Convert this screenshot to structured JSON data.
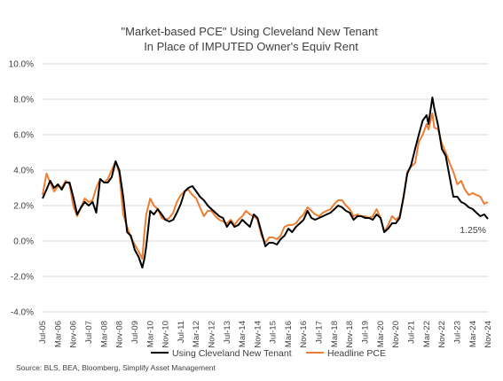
{
  "chart_data": {
    "type": "line",
    "title": "\"Market-based PCE\" Using Cleveland New Tenant\nIn Place of IMPUTED Owner's Equiv Rent",
    "source": "Source: BLS, BEA, Bloomberg, Simplify Asset Management",
    "ylim": [
      -4.0,
      10.0
    ],
    "y_ticks": [
      "10.0%",
      "8.0%",
      "6.0%",
      "4.0%",
      "2.0%",
      "0.0%",
      "-2.0%",
      "-4.0%"
    ],
    "y_tick_values": [
      10,
      8,
      6,
      4,
      2,
      0,
      -2,
      -4
    ],
    "x_tick_labels": [
      "Jul-05",
      "Mar-06",
      "Nov-06",
      "Jul-07",
      "Mar-08",
      "Nov-08",
      "Jul-09",
      "Mar-10",
      "Nov-10",
      "Jul-11",
      "Mar-12",
      "Nov-12",
      "Jul-13",
      "Mar-14",
      "Nov-14",
      "Jul-15",
      "Mar-16",
      "Nov-16",
      "Jul-17",
      "Mar-18",
      "Nov-18",
      "Jul-19",
      "Mar-20",
      "Nov-20",
      "Jul-21",
      "Mar-22",
      "Nov-22",
      "Jul-23",
      "Mar-24",
      "Nov-24"
    ],
    "x_tick_decimal_years": [
      2005.5,
      2006.17,
      2006.83,
      2007.5,
      2008.17,
      2008.83,
      2009.5,
      2010.17,
      2010.83,
      2011.5,
      2012.17,
      2012.83,
      2013.5,
      2014.17,
      2014.83,
      2015.5,
      2016.17,
      2016.83,
      2017.5,
      2018.17,
      2018.83,
      2019.5,
      2020.17,
      2020.83,
      2021.5,
      2022.17,
      2022.83,
      2023.5,
      2024.17,
      2024.83
    ],
    "x_range": [
      2005.5,
      2024.83
    ],
    "grid": "horizontal",
    "legend_position": "bottom",
    "annotation": "1.25%",
    "series": [
      {
        "name": "Using Cleveland New Tenant",
        "color": "#000000",
        "points": [
          [
            2005.5,
            2.4
          ],
          [
            2005.67,
            2.9
          ],
          [
            2005.83,
            3.4
          ],
          [
            2006.0,
            3.0
          ],
          [
            2006.17,
            3.2
          ],
          [
            2006.33,
            2.9
          ],
          [
            2006.5,
            3.3
          ],
          [
            2006.67,
            3.3
          ],
          [
            2006.83,
            2.5
          ],
          [
            2007.0,
            1.5
          ],
          [
            2007.17,
            1.9
          ],
          [
            2007.33,
            2.2
          ],
          [
            2007.5,
            2.0
          ],
          [
            2007.67,
            2.2
          ],
          [
            2007.83,
            1.6
          ],
          [
            2008.0,
            3.5
          ],
          [
            2008.17,
            3.3
          ],
          [
            2008.33,
            3.3
          ],
          [
            2008.5,
            3.6
          ],
          [
            2008.67,
            4.5
          ],
          [
            2008.83,
            4.0
          ],
          [
            2009.0,
            2.5
          ],
          [
            2009.17,
            0.5
          ],
          [
            2009.33,
            0.3
          ],
          [
            2009.5,
            -0.5
          ],
          [
            2009.67,
            -0.9
          ],
          [
            2009.83,
            -1.5
          ],
          [
            2009.92,
            -1.0
          ],
          [
            2010.0,
            -0.3
          ],
          [
            2010.17,
            1.7
          ],
          [
            2010.33,
            1.5
          ],
          [
            2010.5,
            1.8
          ],
          [
            2010.67,
            1.5
          ],
          [
            2010.83,
            1.2
          ],
          [
            2011.0,
            1.1
          ],
          [
            2011.17,
            1.2
          ],
          [
            2011.33,
            1.6
          ],
          [
            2011.5,
            2.1
          ],
          [
            2011.67,
            2.8
          ],
          [
            2011.83,
            3.0
          ],
          [
            2012.0,
            3.1
          ],
          [
            2012.17,
            2.8
          ],
          [
            2012.33,
            2.5
          ],
          [
            2012.5,
            2.3
          ],
          [
            2012.67,
            2.0
          ],
          [
            2012.83,
            1.8
          ],
          [
            2013.0,
            1.6
          ],
          [
            2013.17,
            1.4
          ],
          [
            2013.33,
            1.3
          ],
          [
            2013.5,
            0.8
          ],
          [
            2013.67,
            1.1
          ],
          [
            2013.83,
            0.8
          ],
          [
            2014.0,
            0.9
          ],
          [
            2014.17,
            1.2
          ],
          [
            2014.33,
            1.0
          ],
          [
            2014.5,
            0.8
          ],
          [
            2014.67,
            1.5
          ],
          [
            2014.83,
            1.3
          ],
          [
            2015.0,
            0.5
          ],
          [
            2015.17,
            -0.3
          ],
          [
            2015.33,
            -0.1
          ],
          [
            2015.5,
            -0.1
          ],
          [
            2015.67,
            -0.2
          ],
          [
            2015.83,
            0.1
          ],
          [
            2016.0,
            0.3
          ],
          [
            2016.17,
            0.7
          ],
          [
            2016.33,
            0.5
          ],
          [
            2016.5,
            0.8
          ],
          [
            2016.67,
            1.0
          ],
          [
            2016.83,
            1.2
          ],
          [
            2017.0,
            1.7
          ],
          [
            2017.17,
            1.3
          ],
          [
            2017.33,
            1.2
          ],
          [
            2017.5,
            1.3
          ],
          [
            2017.67,
            1.4
          ],
          [
            2017.83,
            1.5
          ],
          [
            2018.0,
            1.6
          ],
          [
            2018.17,
            1.8
          ],
          [
            2018.33,
            2.0
          ],
          [
            2018.5,
            1.9
          ],
          [
            2018.67,
            1.7
          ],
          [
            2018.83,
            1.6
          ],
          [
            2019.0,
            1.2
          ],
          [
            2019.17,
            1.4
          ],
          [
            2019.33,
            1.4
          ],
          [
            2019.5,
            1.3
          ],
          [
            2019.67,
            1.3
          ],
          [
            2019.83,
            1.2
          ],
          [
            2020.0,
            1.5
          ],
          [
            2020.17,
            1.3
          ],
          [
            2020.33,
            0.5
          ],
          [
            2020.5,
            0.7
          ],
          [
            2020.67,
            1.0
          ],
          [
            2020.83,
            1.0
          ],
          [
            2021.0,
            1.3
          ],
          [
            2021.17,
            2.5
          ],
          [
            2021.33,
            3.8
          ],
          [
            2021.5,
            4.3
          ],
          [
            2021.67,
            5.2
          ],
          [
            2021.83,
            6.0
          ],
          [
            2022.0,
            6.8
          ],
          [
            2022.17,
            7.1
          ],
          [
            2022.25,
            6.6
          ],
          [
            2022.42,
            8.1
          ],
          [
            2022.5,
            7.5
          ],
          [
            2022.67,
            6.5
          ],
          [
            2022.83,
            5.2
          ],
          [
            2023.0,
            4.8
          ],
          [
            2023.17,
            3.6
          ],
          [
            2023.33,
            2.5
          ],
          [
            2023.5,
            2.5
          ],
          [
            2023.67,
            2.2
          ],
          [
            2023.83,
            2.1
          ],
          [
            2024.0,
            1.9
          ],
          [
            2024.17,
            1.8
          ],
          [
            2024.33,
            1.6
          ],
          [
            2024.5,
            1.4
          ],
          [
            2024.67,
            1.5
          ],
          [
            2024.83,
            1.25
          ]
        ]
      },
      {
        "name": "Headline PCE",
        "color": "#ED7D31",
        "points": [
          [
            2005.5,
            2.6
          ],
          [
            2005.67,
            3.8
          ],
          [
            2005.83,
            3.3
          ],
          [
            2006.0,
            2.8
          ],
          [
            2006.17,
            3.1
          ],
          [
            2006.33,
            3.0
          ],
          [
            2006.5,
            3.4
          ],
          [
            2006.67,
            3.2
          ],
          [
            2006.83,
            2.0
          ],
          [
            2007.0,
            1.4
          ],
          [
            2007.17,
            1.9
          ],
          [
            2007.33,
            2.4
          ],
          [
            2007.5,
            2.2
          ],
          [
            2007.67,
            2.3
          ],
          [
            2007.83,
            3.0
          ],
          [
            2008.0,
            3.5
          ],
          [
            2008.17,
            3.3
          ],
          [
            2008.33,
            3.5
          ],
          [
            2008.5,
            4.0
          ],
          [
            2008.67,
            4.5
          ],
          [
            2008.83,
            3.8
          ],
          [
            2009.0,
            1.5
          ],
          [
            2009.17,
            0.8
          ],
          [
            2009.33,
            0.2
          ],
          [
            2009.5,
            -0.2
          ],
          [
            2009.67,
            -0.6
          ],
          [
            2009.83,
            -1.0
          ],
          [
            2009.92,
            0.5
          ],
          [
            2010.0,
            1.5
          ],
          [
            2010.17,
            2.4
          ],
          [
            2010.33,
            2.0
          ],
          [
            2010.5,
            1.8
          ],
          [
            2010.67,
            1.3
          ],
          [
            2010.83,
            1.2
          ],
          [
            2011.0,
            1.3
          ],
          [
            2011.17,
            1.6
          ],
          [
            2011.33,
            2.2
          ],
          [
            2011.5,
            2.6
          ],
          [
            2011.67,
            2.8
          ],
          [
            2011.83,
            2.9
          ],
          [
            2012.0,
            2.6
          ],
          [
            2012.17,
            2.4
          ],
          [
            2012.33,
            1.9
          ],
          [
            2012.5,
            1.4
          ],
          [
            2012.67,
            1.7
          ],
          [
            2012.83,
            1.7
          ],
          [
            2013.0,
            1.4
          ],
          [
            2013.17,
            1.2
          ],
          [
            2013.33,
            1.1
          ],
          [
            2013.5,
            1.0
          ],
          [
            2013.67,
            1.2
          ],
          [
            2013.83,
            0.9
          ],
          [
            2014.0,
            1.2
          ],
          [
            2014.17,
            1.4
          ],
          [
            2014.33,
            1.7
          ],
          [
            2014.5,
            1.5
          ],
          [
            2014.67,
            1.4
          ],
          [
            2014.83,
            1.2
          ],
          [
            2015.0,
            0.3
          ],
          [
            2015.17,
            -0.1
          ],
          [
            2015.33,
            0.2
          ],
          [
            2015.5,
            0.2
          ],
          [
            2015.67,
            0.1
          ],
          [
            2015.83,
            0.3
          ],
          [
            2016.0,
            0.8
          ],
          [
            2016.17,
            0.9
          ],
          [
            2016.33,
            0.9
          ],
          [
            2016.5,
            1.0
          ],
          [
            2016.67,
            1.3
          ],
          [
            2016.83,
            1.5
          ],
          [
            2017.0,
            1.9
          ],
          [
            2017.17,
            1.7
          ],
          [
            2017.33,
            1.5
          ],
          [
            2017.5,
            1.4
          ],
          [
            2017.67,
            1.6
          ],
          [
            2017.83,
            1.7
          ],
          [
            2018.0,
            1.8
          ],
          [
            2018.17,
            2.1
          ],
          [
            2018.33,
            2.3
          ],
          [
            2018.5,
            2.3
          ],
          [
            2018.67,
            2.0
          ],
          [
            2018.83,
            1.8
          ],
          [
            2019.0,
            1.4
          ],
          [
            2019.17,
            1.5
          ],
          [
            2019.33,
            1.4
          ],
          [
            2019.5,
            1.4
          ],
          [
            2019.67,
            1.3
          ],
          [
            2019.83,
            1.4
          ],
          [
            2020.0,
            1.8
          ],
          [
            2020.17,
            1.3
          ],
          [
            2020.33,
            0.5
          ],
          [
            2020.5,
            0.9
          ],
          [
            2020.67,
            1.4
          ],
          [
            2020.83,
            1.2
          ],
          [
            2021.0,
            1.4
          ],
          [
            2021.17,
            2.5
          ],
          [
            2021.33,
            3.9
          ],
          [
            2021.5,
            4.2
          ],
          [
            2021.67,
            4.4
          ],
          [
            2021.83,
            5.6
          ],
          [
            2022.0,
            6.0
          ],
          [
            2022.17,
            6.6
          ],
          [
            2022.25,
            6.3
          ],
          [
            2022.42,
            7.2
          ],
          [
            2022.5,
            6.4
          ],
          [
            2022.67,
            6.3
          ],
          [
            2022.83,
            5.5
          ],
          [
            2023.0,
            5.0
          ],
          [
            2023.17,
            4.4
          ],
          [
            2023.33,
            3.9
          ],
          [
            2023.5,
            3.2
          ],
          [
            2023.67,
            3.4
          ],
          [
            2023.83,
            2.9
          ],
          [
            2024.0,
            2.6
          ],
          [
            2024.17,
            2.7
          ],
          [
            2024.33,
            2.6
          ],
          [
            2024.5,
            2.5
          ],
          [
            2024.67,
            2.1
          ],
          [
            2024.83,
            2.2
          ]
        ]
      }
    ]
  }
}
